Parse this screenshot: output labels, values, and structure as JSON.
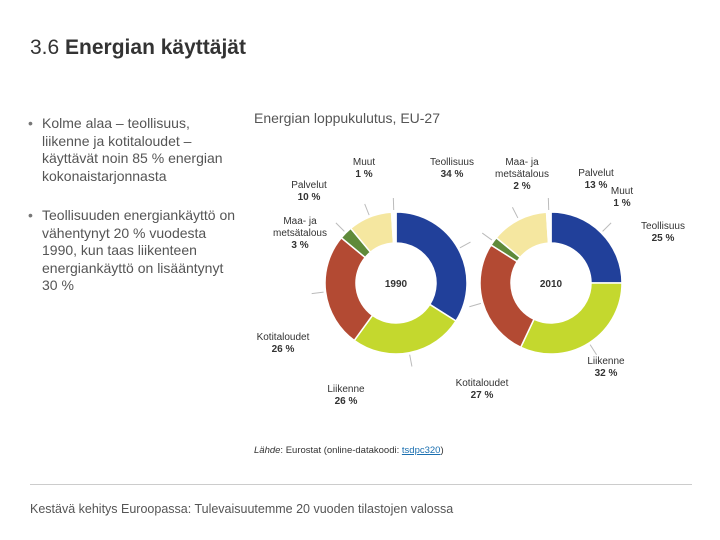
{
  "slide": {
    "title_number": "3.6",
    "title_text": "Energian käyttäjät",
    "bullets": [
      "Kolme alaa – teollisuus, liikenne ja kotitaloudet – käyttävät noin 85 % energian kokonaistarjonnasta",
      "Teollisuuden energiankäyttö on vähentynyt 20 % vuodesta 1990, kun taas liikenteen energiankäyttö on lisääntynyt 30 %"
    ],
    "source_prefix": "Lähde",
    "source_text": ": Eurostat (online-datakoodi: ",
    "source_link": "tsdpc320",
    "source_suffix": ")",
    "footer": "Kestävä kehitys Euroopassa: Tulevaisuutemme 20 vuoden tilastojen valossa"
  },
  "chart_data": {
    "type": "pie",
    "title": "Energian loppukulutus, EU-27",
    "colors": {
      "Teollisuus": "#21409a",
      "Liikenne": "#c4d82e",
      "Kotitaloudet": "#b34a33",
      "Maa- ja metsätalous": "#5f8a3a",
      "Palvelut": "#f5e7a0",
      "Muut": "#ffffff"
    },
    "charts": [
      {
        "year": "1990",
        "slices": [
          {
            "name": "Teollisuus",
            "value": 34,
            "label_lines": [
              "Teollisuus",
              "34 %"
            ]
          },
          {
            "name": "Liikenne",
            "value": 26,
            "label_lines": [
              "Liikenne",
              "26 %"
            ]
          },
          {
            "name": "Kotitaloudet",
            "value": 26,
            "label_lines": [
              "Kotitaloudet",
              "26 %"
            ]
          },
          {
            "name": "Maa- ja metsätalous",
            "value": 3,
            "label_lines": [
              "Maa- ja",
              "metsätalous",
              "3 %"
            ]
          },
          {
            "name": "Palvelut",
            "value": 10,
            "label_lines": [
              "Palvelut",
              "10 %"
            ]
          },
          {
            "name": "Muut",
            "value": 1,
            "label_lines": [
              "Muut",
              "1 %"
            ]
          }
        ]
      },
      {
        "year": "2010",
        "slices": [
          {
            "name": "Teollisuus",
            "value": 25,
            "label_lines": [
              "Teollisuus",
              "25 %"
            ]
          },
          {
            "name": "Liikenne",
            "value": 32,
            "label_lines": [
              "Liikenne",
              "32 %"
            ]
          },
          {
            "name": "Kotitaloudet",
            "value": 27,
            "label_lines": [
              "Kotitaloudet",
              "27 %"
            ]
          },
          {
            "name": "Maa- ja metsätalous",
            "value": 2,
            "label_lines": [
              "Maa- ja",
              "metsätalous",
              "2 %"
            ]
          },
          {
            "name": "Palvelut",
            "value": 13,
            "label_lines": [
              "Palvelut",
              "13 %"
            ]
          },
          {
            "name": "Muut",
            "value": 1,
            "label_lines": [
              "Muut",
              "1 %"
            ]
          }
        ]
      }
    ]
  }
}
